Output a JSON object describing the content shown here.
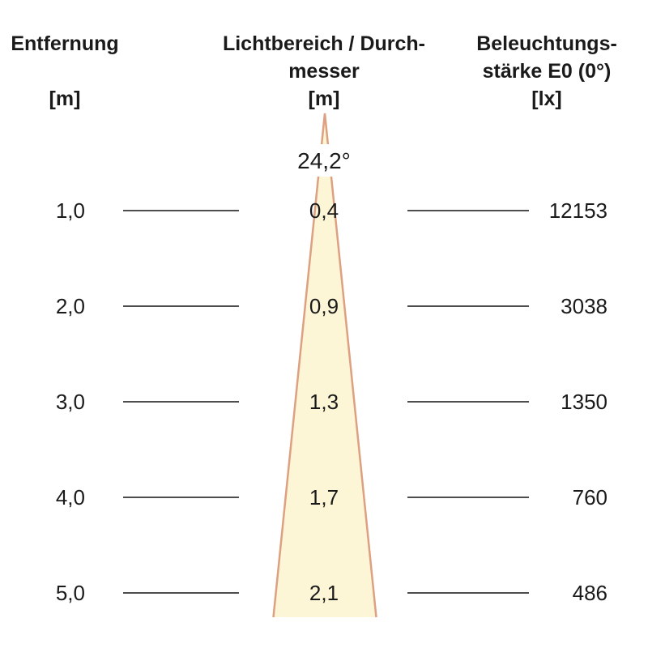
{
  "columns": {
    "distance": {
      "title": "Entfernung",
      "unit": "[m]"
    },
    "diameter": {
      "title_line1": "Lichtbereich / Durch-",
      "title_line2": "messer",
      "unit": "[m]"
    },
    "illuminance": {
      "title_line1": "Beleuchtungs-",
      "title_line2": "stärke E0 (0°)",
      "unit": "[lx]"
    }
  },
  "beam": {
    "angle_label": "24,2°",
    "fill_color": "#FCF5D6",
    "stroke_color": "#DDA081"
  },
  "rows": [
    {
      "distance": "1,0",
      "diameter": "0,4",
      "illuminance": "12153"
    },
    {
      "distance": "2,0",
      "diameter": "0,9",
      "illuminance": "3038"
    },
    {
      "distance": "3,0",
      "diameter": "1,3",
      "illuminance": "1350"
    },
    {
      "distance": "4,0",
      "diameter": "1,7",
      "illuminance": "760"
    },
    {
      "distance": "5,0",
      "diameter": "2,1",
      "illuminance": "486"
    }
  ],
  "chart_data": {
    "type": "table",
    "beam_angle_degrees": 24.2,
    "columns": [
      "Entfernung [m]",
      "Lichtbereich / Durchmesser [m]",
      "Beleuchtungsstärke E0 (0°) [lx]"
    ],
    "rows": [
      [
        1.0,
        0.4,
        12153
      ],
      [
        2.0,
        0.9,
        3038
      ],
      [
        3.0,
        1.3,
        1350
      ],
      [
        4.0,
        1.7,
        760
      ],
      [
        5.0,
        2.1,
        486
      ]
    ]
  }
}
